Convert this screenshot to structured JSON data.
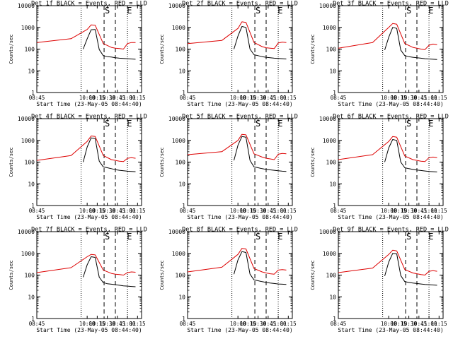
{
  "colors": {
    "events": "#000000",
    "lld": "#dd0000",
    "axes": "#000000",
    "background": "#ffffff"
  },
  "ylabel": "Counts/sec",
  "xlabel": "Start Time (23-May-05 08:44:40)",
  "yticks": [
    "1",
    "10",
    "100",
    "1000",
    "10000"
  ],
  "xticks": [
    "08:45",
    "10:00",
    "10:15",
    "10:30",
    "10:45",
    "11:00",
    "11:15"
  ],
  "markers": [
    "S",
    "E"
  ],
  "chart_data": [
    {
      "type": "line",
      "title": "Det 1f BLACK = Events, RED = LLD",
      "ylabel": "Counts/sec",
      "xlabel": "Start Time (23-May-05 08:44:40)",
      "y_scale": "log",
      "ylim": [
        1,
        10000
      ],
      "x_ticks": [
        "08:45",
        "10:00",
        "10:15",
        "10:30",
        "10:45",
        "11:00",
        "11:15"
      ],
      "marker_labels": [
        "S",
        "E"
      ],
      "series": [
        {
          "name": "Events",
          "color": "#000000",
          "x": [
            9.9,
            10.0,
            10.1,
            10.2,
            10.3,
            10.4,
            10.5,
            10.6,
            10.7,
            10.8,
            10.9,
            11.0,
            11.1,
            11.2
          ],
          "y": [
            100,
            300,
            780,
            800,
            95,
            50,
            45,
            43,
            40,
            38,
            37,
            36,
            35,
            34
          ]
        },
        {
          "name": "LLD",
          "color": "#dd0000",
          "x": [
            8.75,
            9.6,
            10.0,
            10.1,
            10.2,
            10.4,
            10.6,
            10.7,
            10.8,
            10.9,
            11.0,
            11.1,
            11.2
          ],
          "y": [
            200,
            300,
            800,
            1300,
            1250,
            180,
            120,
            110,
            105,
            100,
            180,
            200,
            200
          ]
        }
      ]
    },
    {
      "type": "line",
      "title": "Det 2f BLACK = Events, RED = LLD",
      "ylabel": "Counts/sec",
      "xlabel": "Start Time (23-May-05 08:44:40)",
      "y_scale": "log",
      "ylim": [
        1,
        10000
      ],
      "x_ticks": [
        "08:45",
        "10:00",
        "10:15",
        "10:30",
        "10:45",
        "11:00",
        "11:15"
      ],
      "marker_labels": [
        "S",
        "E"
      ],
      "series": [
        {
          "name": "Events",
          "color": "#000000",
          "x": [
            9.9,
            10.0,
            10.1,
            10.2,
            10.3,
            10.4,
            10.5,
            10.6,
            10.7,
            10.8,
            10.9,
            11.0,
            11.1,
            11.2
          ],
          "y": [
            100,
            400,
            1100,
            1000,
            100,
            55,
            50,
            45,
            42,
            40,
            38,
            37,
            36,
            35
          ]
        },
        {
          "name": "LLD",
          "color": "#dd0000",
          "x": [
            8.75,
            9.6,
            10.0,
            10.1,
            10.2,
            10.4,
            10.6,
            10.7,
            10.8,
            10.9,
            11.0,
            11.1,
            11.2
          ],
          "y": [
            180,
            250,
            900,
            1800,
            1700,
            200,
            130,
            115,
            110,
            105,
            190,
            210,
            200
          ]
        }
      ]
    },
    {
      "type": "line",
      "title": "Det 3f BLACK = Events, RED = LLD",
      "ylabel": "Counts/sec",
      "xlabel": "Start Time (23-May-05 08:44:40)",
      "y_scale": "log",
      "ylim": [
        1,
        10000
      ],
      "x_ticks": [
        "08:45",
        "10:00",
        "10:15",
        "10:30",
        "10:45",
        "11:00",
        "11:15"
      ],
      "marker_labels": [
        "S",
        "E"
      ],
      "series": [
        {
          "name": "Events",
          "color": "#000000",
          "x": [
            9.9,
            10.0,
            10.1,
            10.2,
            10.3,
            10.4,
            10.5,
            10.6,
            10.7,
            10.8,
            10.9,
            11.0,
            11.1,
            11.2
          ],
          "y": [
            90,
            350,
            1000,
            900,
            90,
            50,
            45,
            42,
            40,
            38,
            36,
            35,
            34,
            33
          ]
        },
        {
          "name": "LLD",
          "color": "#dd0000",
          "x": [
            8.75,
            9.6,
            10.0,
            10.1,
            10.2,
            10.4,
            10.6,
            10.7,
            10.8,
            10.9,
            11.0,
            11.1,
            11.2
          ],
          "y": [
            110,
            200,
            1000,
            1500,
            1400,
            180,
            120,
            110,
            100,
            95,
            150,
            170,
            160
          ]
        }
      ]
    },
    {
      "type": "line",
      "title": "Det 4f BLACK = Events, RED = LLD",
      "ylabel": "Counts/sec",
      "xlabel": "Start Time (23-May-05 08:44:40)",
      "y_scale": "log",
      "ylim": [
        1,
        10000
      ],
      "x_ticks": [
        "08:45",
        "10:00",
        "10:15",
        "10:30",
        "10:45",
        "11:00",
        "11:15"
      ],
      "marker_labels": [
        "S",
        "E"
      ],
      "series": [
        {
          "name": "Events",
          "color": "#000000",
          "x": [
            9.9,
            10.0,
            10.1,
            10.2,
            10.3,
            10.4,
            10.5,
            10.6,
            10.7,
            10.8,
            10.9,
            11.0,
            11.1,
            11.2
          ],
          "y": [
            100,
            500,
            1300,
            1200,
            110,
            60,
            55,
            50,
            45,
            42,
            40,
            38,
            37,
            36
          ]
        },
        {
          "name": "LLD",
          "color": "#dd0000",
          "x": [
            8.75,
            9.6,
            10.0,
            10.1,
            10.2,
            10.4,
            10.6,
            10.7,
            10.8,
            10.9,
            11.0,
            11.1,
            11.2
          ],
          "y": [
            120,
            200,
            900,
            1600,
            1500,
            200,
            130,
            120,
            110,
            105,
            150,
            160,
            150
          ]
        }
      ]
    },
    {
      "type": "line",
      "title": "Det 5f BLACK = Events, RED = LLD",
      "ylabel": "Counts/sec",
      "xlabel": "Start Time (23-May-05 08:44:40)",
      "y_scale": "log",
      "ylim": [
        1,
        10000
      ],
      "x_ticks": [
        "08:45",
        "10:00",
        "10:15",
        "10:30",
        "10:45",
        "11:00",
        "11:15"
      ],
      "marker_labels": [
        "S",
        "E"
      ],
      "series": [
        {
          "name": "Events",
          "color": "#000000",
          "x": [
            9.9,
            10.0,
            10.1,
            10.2,
            10.3,
            10.4,
            10.5,
            10.6,
            10.7,
            10.8,
            10.9,
            11.0,
            11.1,
            11.2
          ],
          "y": [
            120,
            600,
            1500,
            1400,
            120,
            60,
            55,
            50,
            46,
            44,
            42,
            40,
            38,
            37
          ]
        },
        {
          "name": "LLD",
          "color": "#dd0000",
          "x": [
            8.75,
            9.6,
            10.0,
            10.1,
            10.2,
            10.4,
            10.6,
            10.7,
            10.8,
            10.9,
            11.0,
            11.1,
            11.2
          ],
          "y": [
            220,
            300,
            1000,
            1900,
            1800,
            240,
            170,
            150,
            140,
            130,
            230,
            250,
            240
          ]
        }
      ]
    },
    {
      "type": "line",
      "title": "Det 6f BLACK = Events, RED = LLD",
      "ylabel": "Counts/sec",
      "xlabel": "Start Time (23-May-05 08:44:40)",
      "y_scale": "log",
      "ylim": [
        1,
        10000
      ],
      "x_ticks": [
        "08:45",
        "10:00",
        "10:15",
        "10:30",
        "10:45",
        "11:00",
        "11:15"
      ],
      "marker_labels": [
        "S",
        "E"
      ],
      "series": [
        {
          "name": "Events",
          "color": "#000000",
          "x": [
            9.9,
            10.0,
            10.1,
            10.2,
            10.3,
            10.4,
            10.5,
            10.6,
            10.7,
            10.8,
            10.9,
            11.0,
            11.1,
            11.2
          ],
          "y": [
            100,
            450,
            1100,
            1000,
            100,
            55,
            50,
            46,
            43,
            41,
            39,
            37,
            36,
            35
          ]
        },
        {
          "name": "LLD",
          "color": "#dd0000",
          "x": [
            8.75,
            9.6,
            10.0,
            10.1,
            10.2,
            10.4,
            10.6,
            10.7,
            10.8,
            10.9,
            11.0,
            11.1,
            11.2
          ],
          "y": [
            130,
            220,
            900,
            1500,
            1400,
            190,
            130,
            120,
            110,
            105,
            160,
            170,
            160
          ]
        }
      ]
    },
    {
      "type": "line",
      "title": "Det 7f BLACK = Events, RED = LLD",
      "ylabel": "Counts/sec",
      "xlabel": "Start Time (23-May-05 08:44:40)",
      "y_scale": "log",
      "ylim": [
        1,
        10000
      ],
      "x_ticks": [
        "08:45",
        "10:00",
        "10:15",
        "10:30",
        "10:45",
        "11:00",
        "11:15"
      ],
      "marker_labels": [
        "S",
        "E"
      ],
      "series": [
        {
          "name": "Events",
          "color": "#000000",
          "x": [
            9.9,
            10.0,
            10.1,
            10.2,
            10.3,
            10.4,
            10.5,
            10.6,
            10.7,
            10.8,
            10.9,
            11.0,
            11.1,
            11.2
          ],
          "y": [
            80,
            300,
            700,
            650,
            80,
            45,
            40,
            38,
            36,
            34,
            32,
            31,
            30,
            29
          ]
        },
        {
          "name": "LLD",
          "color": "#dd0000",
          "x": [
            8.75,
            9.6,
            10.0,
            10.1,
            10.2,
            10.4,
            10.6,
            10.7,
            10.8,
            10.9,
            11.0,
            11.1,
            11.2
          ],
          "y": [
            130,
            220,
            700,
            900,
            850,
            170,
            120,
            110,
            105,
            100,
            130,
            140,
            135
          ]
        }
      ]
    },
    {
      "type": "line",
      "title": "Det 8f BLACK = Events, RED = LLD",
      "ylabel": "Counts/sec",
      "xlabel": "Start Time (23-May-05 08:44:40)",
      "y_scale": "log",
      "ylim": [
        1,
        10000
      ],
      "x_ticks": [
        "08:45",
        "10:00",
        "10:15",
        "10:30",
        "10:45",
        "11:00",
        "11:15"
      ],
      "marker_labels": [
        "S",
        "E"
      ],
      "series": [
        {
          "name": "Events",
          "color": "#000000",
          "x": [
            9.9,
            10.0,
            10.1,
            10.2,
            10.3,
            10.4,
            10.5,
            10.6,
            10.7,
            10.8,
            10.9,
            11.0,
            11.1,
            11.2
          ],
          "y": [
            110,
            500,
            1200,
            1100,
            110,
            60,
            55,
            50,
            46,
            43,
            41,
            39,
            38,
            37
          ]
        },
        {
          "name": "LLD",
          "color": "#dd0000",
          "x": [
            8.75,
            9.6,
            10.0,
            10.1,
            10.2,
            10.4,
            10.6,
            10.7,
            10.8,
            10.9,
            11.0,
            11.1,
            11.2
          ],
          "y": [
            140,
            230,
            900,
            1700,
            1600,
            200,
            140,
            125,
            115,
            110,
            170,
            180,
            170
          ]
        }
      ]
    },
    {
      "type": "line",
      "title": "Det 9f BLACK = Events, RED = LLD",
      "ylabel": "Counts/sec",
      "xlabel": "Start Time (23-May-05 08:44:40)",
      "y_scale": "log",
      "ylim": [
        1,
        10000
      ],
      "x_ticks": [
        "08:45",
        "10:00",
        "10:15",
        "10:30",
        "10:45",
        "11:00",
        "11:15"
      ],
      "marker_labels": [
        "S",
        "E"
      ],
      "series": [
        {
          "name": "Events",
          "color": "#000000",
          "x": [
            9.9,
            10.0,
            10.1,
            10.2,
            10.3,
            10.4,
            10.5,
            10.6,
            10.7,
            10.8,
            10.9,
            11.0,
            11.1,
            11.2
          ],
          "y": [
            90,
            400,
            1000,
            950,
            95,
            50,
            46,
            43,
            41,
            39,
            37,
            36,
            35,
            34
          ]
        },
        {
          "name": "LLD",
          "color": "#dd0000",
          "x": [
            8.75,
            9.6,
            10.0,
            10.1,
            10.2,
            10.4,
            10.6,
            10.7,
            10.8,
            10.9,
            11.0,
            11.1,
            11.2
          ],
          "y": [
            130,
            210,
            900,
            1400,
            1300,
            180,
            125,
            115,
            105,
            100,
            150,
            160,
            150
          ]
        }
      ]
    }
  ]
}
